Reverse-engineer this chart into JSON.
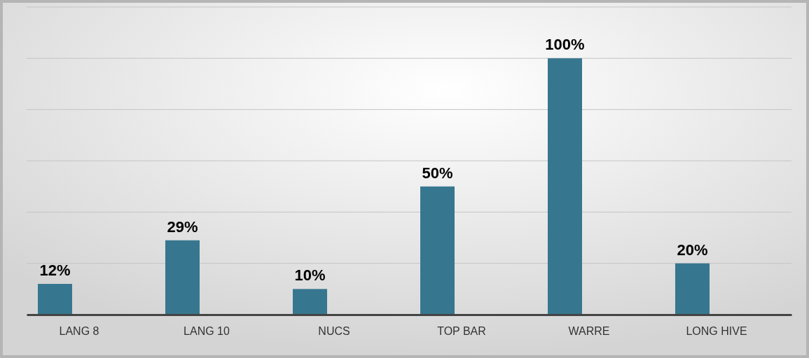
{
  "chart_data": {
    "type": "bar",
    "categories": [
      "LANG 8",
      "LANG 10",
      "NUCS",
      "TOP BAR",
      "WARRE",
      "LONG HIVE"
    ],
    "values": [
      12,
      29,
      10,
      50,
      100,
      20
    ],
    "value_labels": [
      "12%",
      "29%",
      "10%",
      "50%",
      "100%",
      "20%"
    ],
    "color": "#37768f",
    "ylim": [
      0,
      120
    ],
    "yticks": [
      {
        "value": 0,
        "label": null
      },
      {
        "value": 20,
        "label": null
      },
      {
        "value": 40,
        "label": null
      },
      {
        "value": 60,
        "label": null
      },
      {
        "value": 80,
        "label": null
      },
      {
        "value": 100,
        "label": null
      },
      {
        "value": 120,
        "label": null
      }
    ],
    "grid": "y",
    "tick_labels": "x"
  }
}
